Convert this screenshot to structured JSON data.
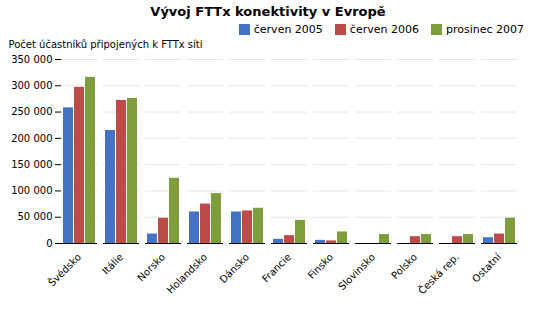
{
  "chart_data": {
    "type": "bar",
    "title": "Vývoj FTTx konektivity v Evropě",
    "y_label": "Počet účastníků připojených k FTTx síti",
    "categories": [
      "Švédsko",
      "Itálie",
      "Norsko",
      "Holandsko",
      "Dánsko",
      "Francie",
      "Finsko",
      "Slovinsko",
      "Polsko",
      "Česká rep.",
      "Ostatní"
    ],
    "series": [
      {
        "name": "červen 2005",
        "color": "#4472C4",
        "values": [
          258000,
          215000,
          18000,
          60000,
          60000,
          8000,
          6000,
          0,
          0,
          0,
          11000
        ]
      },
      {
        "name": "červen 2006",
        "color": "#BE4B48",
        "values": [
          297000,
          272000,
          48000,
          75000,
          62000,
          15000,
          5000,
          0,
          13000,
          13000,
          18000
        ]
      },
      {
        "name": "prosinec 2007",
        "color": "#7D9E3A",
        "values": [
          316000,
          276000,
          124000,
          95000,
          67000,
          44000,
          22000,
          17000,
          17000,
          17000,
          48000
        ]
      }
    ],
    "ylim": [
      0,
      350000
    ],
    "yticks": [
      0,
      {
        "value": 50000,
        "label": "50 000"
      },
      {
        "value": 100000,
        "label": "100 000"
      },
      {
        "value": 150000,
        "label": "150 000"
      },
      {
        "value": 200000,
        "label": "200 000"
      },
      {
        "value": 250000,
        "label": "250 000"
      },
      {
        "value": 300000,
        "label": "300 000"
      },
      {
        "value": 350000,
        "label": "350 000"
      }
    ],
    "grid": true,
    "legend": "upper right"
  }
}
